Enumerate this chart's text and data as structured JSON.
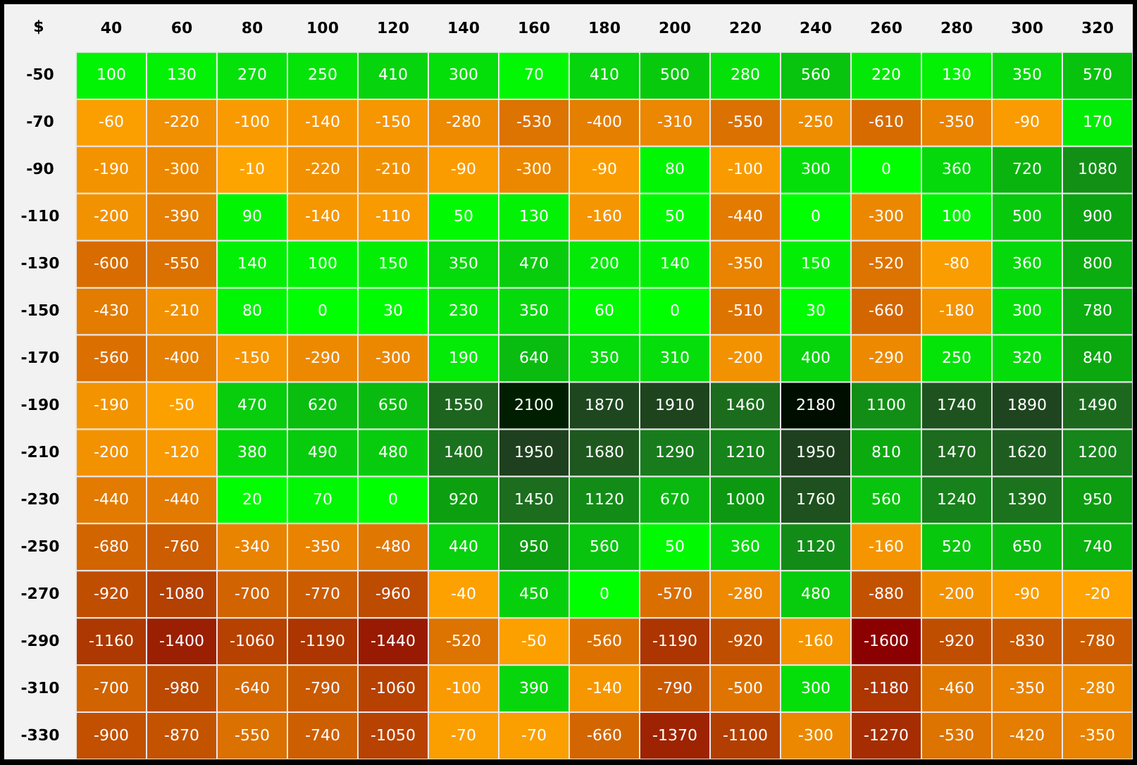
{
  "chart_data": {
    "type": "heatmap",
    "ylabel": "$",
    "data_labels": true,
    "categories": [
      "40",
      "60",
      "80",
      "100",
      "120",
      "140",
      "160",
      "180",
      "200",
      "220",
      "240",
      "260",
      "280",
      "300",
      "320"
    ],
    "y_categories": [
      "-50",
      "-70",
      "-90",
      "-110",
      "-130",
      "-150",
      "-170",
      "-190",
      "-210",
      "-230",
      "-250",
      "-270",
      "-290",
      "-310",
      "-330"
    ],
    "cells": [
      [
        100,
        130,
        270,
        250,
        410,
        300,
        70,
        410,
        500,
        280,
        560,
        220,
        130,
        350,
        570
      ],
      [
        -60,
        -220,
        -100,
        -140,
        -150,
        -280,
        -530,
        -400,
        -310,
        -550,
        -250,
        -610,
        -350,
        -90,
        170
      ],
      [
        -190,
        -300,
        -10,
        -220,
        -210,
        -90,
        -300,
        -90,
        80,
        -100,
        300,
        0,
        360,
        720,
        1080
      ],
      [
        -200,
        -390,
        90,
        -140,
        -110,
        50,
        130,
        -160,
        50,
        -440,
        0,
        -300,
        100,
        500,
        900
      ],
      [
        -600,
        -550,
        140,
        100,
        150,
        350,
        470,
        200,
        140,
        -350,
        150,
        -520,
        -80,
        360,
        800
      ],
      [
        -430,
        -210,
        80,
        0,
        30,
        230,
        350,
        60,
        0,
        -510,
        30,
        -660,
        -180,
        300,
        780
      ],
      [
        -560,
        -400,
        -150,
        -290,
        -300,
        190,
        640,
        350,
        310,
        -200,
        400,
        -290,
        250,
        320,
        840
      ],
      [
        -190,
        -50,
        470,
        620,
        650,
        1550,
        2100,
        1870,
        1910,
        1460,
        2180,
        1100,
        1740,
        1890,
        1490
      ],
      [
        -200,
        -120,
        380,
        490,
        480,
        1400,
        1950,
        1680,
        1290,
        1210,
        1950,
        810,
        1470,
        1620,
        1200
      ],
      [
        -440,
        -440,
        20,
        70,
        0,
        920,
        1450,
        1120,
        670,
        1000,
        1760,
        560,
        1240,
        1390,
        950
      ],
      [
        -680,
        -760,
        -340,
        -350,
        -480,
        440,
        950,
        560,
        50,
        360,
        1120,
        -160,
        520,
        650,
        740
      ],
      [
        -920,
        -1080,
        -700,
        -770,
        -960,
        -40,
        450,
        0,
        -570,
        -280,
        480,
        -880,
        -200,
        -90,
        -20
      ],
      [
        -1160,
        -1400,
        -1060,
        -1190,
        -1440,
        -520,
        -50,
        -560,
        -1190,
        -920,
        -160,
        -1600,
        -920,
        -830,
        -780
      ],
      [
        -700,
        -980,
        -640,
        -790,
        -1060,
        -100,
        390,
        -140,
        -790,
        -500,
        300,
        -1180,
        -460,
        -350,
        -280
      ],
      [
        -900,
        -870,
        -550,
        -740,
        -1050,
        -70,
        -70,
        -660,
        -1370,
        -1100,
        -300,
        -1270,
        -530,
        -420,
        -350
      ]
    ]
  }
}
